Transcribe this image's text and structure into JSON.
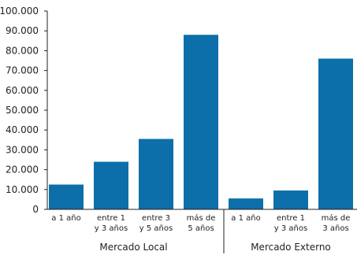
{
  "chart_data": {
    "type": "bar",
    "ylim": [
      0,
      100000
    ],
    "y_ticks": [
      "0",
      "10.000",
      "20.000",
      "30.000",
      "40.000",
      "50.000",
      "60.000",
      "70.000",
      "80.000",
      "90.000",
      "100.000"
    ],
    "grid": false,
    "bar_color": "#0d6fa9",
    "groups": [
      {
        "name": "Mercado Local",
        "categories": [
          [
            "a 1 año"
          ],
          [
            "entre 1",
            "y 3 años"
          ],
          [
            "entre 3",
            "y 5 años"
          ],
          [
            "más de",
            "5 años"
          ]
        ],
        "values": [
          12500,
          24000,
          35500,
          88000
        ]
      },
      {
        "name": "Mercado Externo",
        "categories": [
          [
            "a 1 año"
          ],
          [
            "entre 1",
            "y 3 años"
          ],
          [
            "más de",
            "3 años"
          ]
        ],
        "values": [
          5500,
          9500,
          76000
        ]
      }
    ]
  }
}
